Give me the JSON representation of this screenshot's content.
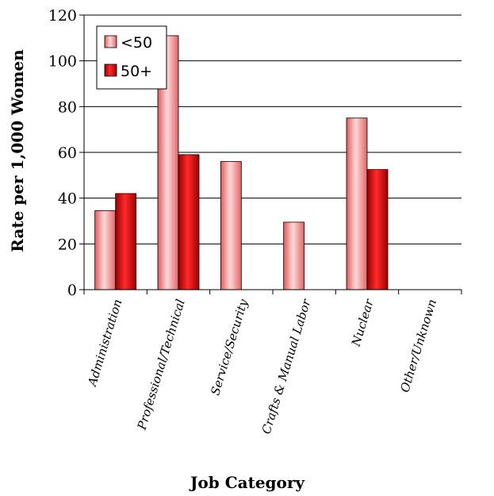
{
  "chart_data": {
    "type": "bar",
    "categories": [
      "Administration",
      "Professional/Technical",
      "Service/Security",
      "Crafts & Manual Labor",
      "Nuclear",
      "Other/Unknown"
    ],
    "series": [
      {
        "name": "<50",
        "values": [
          34.5,
          111,
          56,
          29.5,
          75,
          0
        ],
        "color": "#f08a8a"
      },
      {
        "name": "50+",
        "values": [
          42,
          59,
          0,
          0,
          52.5,
          0
        ],
        "color": "#cc0000"
      }
    ],
    "xlabel": "Job Category",
    "ylabel": "Rate per 1,000 Women",
    "ylim": [
      0,
      120
    ],
    "yticks": [
      0,
      20,
      40,
      60,
      80,
      100,
      120
    ],
    "grid": true,
    "legend_position": "top-left"
  }
}
